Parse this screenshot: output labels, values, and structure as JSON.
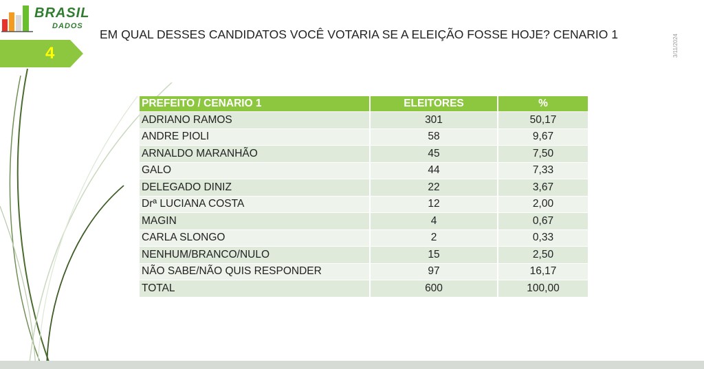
{
  "logo": {
    "brand_line1": "BRASIL",
    "brand_line2": "DADOS"
  },
  "slide_number": "4",
  "title": "EM QUAL DESSES CANDIDATOS VOCÊ VOTARIA SE A ELEIÇÃO FOSSE HOJE? CENARIO 1",
  "date": "3/11/2024",
  "table": {
    "headers": [
      "PREFEITO / CENARIO 1",
      "ELEITORES",
      "%"
    ],
    "rows": [
      [
        "ADRIANO RAMOS",
        "301",
        "50,17"
      ],
      [
        "ANDRE PIOLI",
        "58",
        "9,67"
      ],
      [
        "ARNALDO MARANHÃO",
        "45",
        "7,50"
      ],
      [
        "GALO",
        "44",
        "7,33"
      ],
      [
        "DELEGADO DINIZ",
        "22",
        "3,67"
      ],
      [
        "Drª LUCIANA COSTA",
        "12",
        "2,00"
      ],
      [
        "MAGIN",
        "4",
        "0,67"
      ],
      [
        "CARLA SLONGO",
        "2",
        "0,33"
      ],
      [
        "NENHUM/BRANCO/NULO",
        "15",
        "2,50"
      ],
      [
        "NÃO SABE/NÃO QUIS RESPONDER",
        "97",
        "16,17"
      ],
      [
        "TOTAL",
        "600",
        "100,00"
      ]
    ]
  },
  "colors": {
    "header_green": "#8dc63f",
    "row_light": "#eef4ec",
    "row_dark": "#dfeadb",
    "number_yellow": "#ffff00",
    "brand_green": "#2f7d2f"
  }
}
